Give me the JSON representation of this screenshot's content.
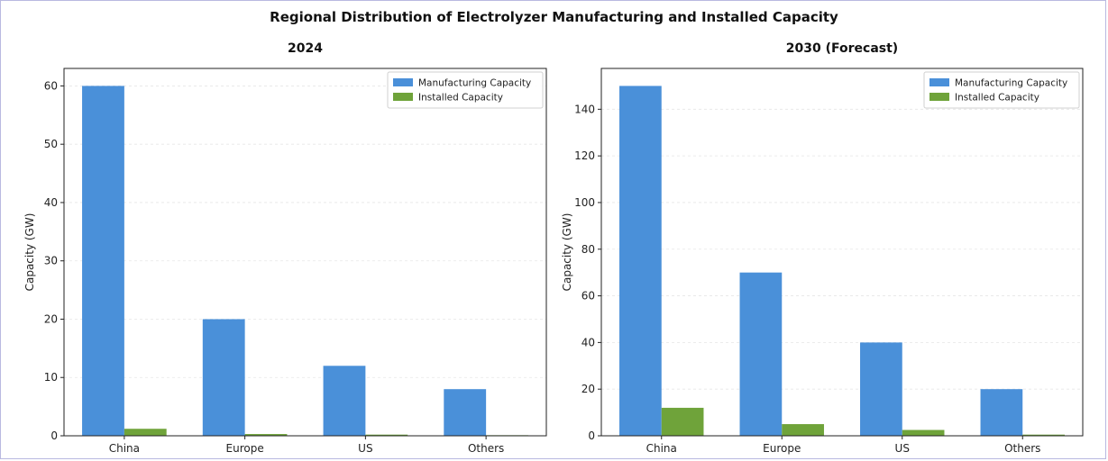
{
  "title": "Regional Distribution of Electrolyzer Manufacturing and Installed Capacity",
  "colors": {
    "manufacturing": "#4a90d9",
    "installed": "#6fa33a"
  },
  "chart_data": [
    {
      "type": "bar",
      "title": "2024",
      "xlabel": "",
      "ylabel": "Capacity (GW)",
      "categories": [
        "China",
        "Europe",
        "US",
        "Others"
      ],
      "series": [
        {
          "name": "Manufacturing Capacity",
          "values": [
            60,
            20,
            12,
            8
          ]
        },
        {
          "name": "Installed Capacity",
          "values": [
            1.2,
            0.3,
            0.2,
            0.1
          ]
        }
      ],
      "ylim": [
        0,
        63
      ],
      "yticks": [
        0,
        10,
        20,
        30,
        40,
        50,
        60
      ],
      "grid": true,
      "legend": "top-right"
    },
    {
      "type": "bar",
      "title": "2030 (Forecast)",
      "xlabel": "",
      "ylabel": "Capacity (GW)",
      "categories": [
        "China",
        "Europe",
        "US",
        "Others"
      ],
      "series": [
        {
          "name": "Manufacturing Capacity",
          "values": [
            150,
            70,
            40,
            20
          ]
        },
        {
          "name": "Installed Capacity",
          "values": [
            12,
            5,
            2.5,
            0.5
          ]
        }
      ],
      "ylim": [
        0,
        157.5
      ],
      "yticks": [
        0,
        20,
        40,
        60,
        80,
        100,
        120,
        140
      ],
      "grid": true,
      "legend": "top-right"
    }
  ]
}
